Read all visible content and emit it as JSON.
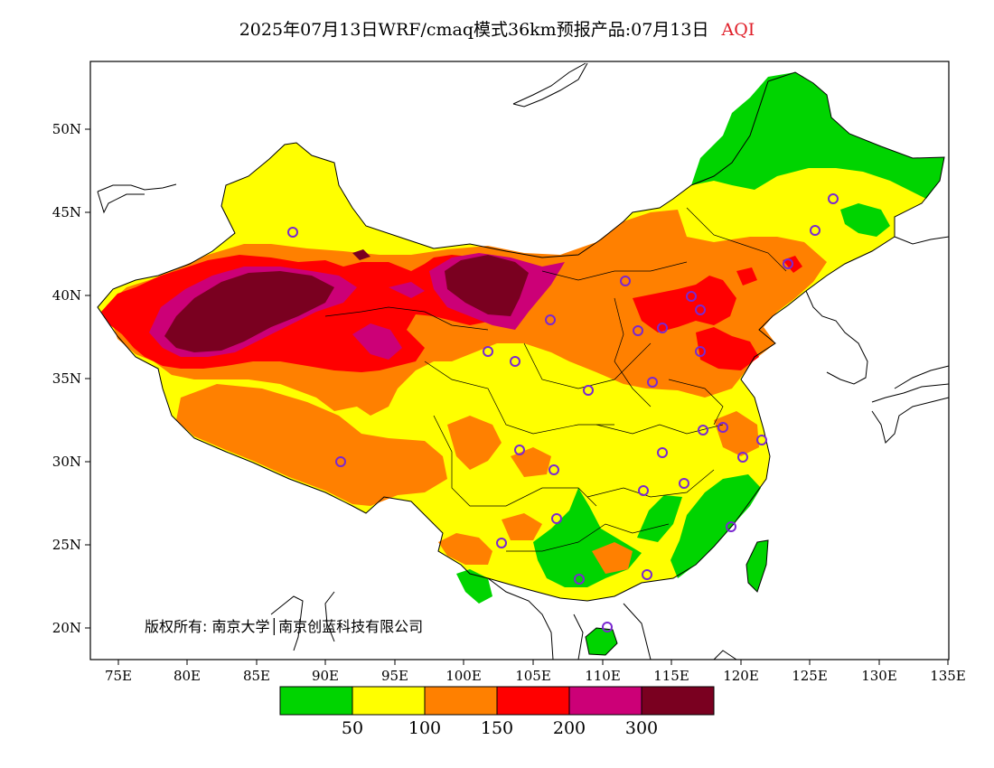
{
  "title": "2025年07月13日WRF/cmaq模式36km预报产品:07月13日",
  "variable": "AQI",
  "copyright": "版权所有: 南京大学│南京创蓝科技有限公司",
  "lat_ticks": [
    "20N",
    "25N",
    "30N",
    "35N",
    "40N",
    "45N",
    "50N"
  ],
  "lon_ticks": [
    "75E",
    "80E",
    "85E",
    "90E",
    "95E",
    "100E",
    "105E",
    "110E",
    "115E",
    "120E",
    "125E",
    "130E",
    "135E"
  ],
  "colorbar": {
    "colors": [
      "#00d400",
      "#ffff00",
      "#ff8000",
      "#ff0000",
      "#cc0077",
      "#7a0020"
    ],
    "labels": [
      "50",
      "100",
      "150",
      "200",
      "300"
    ]
  },
  "legend_colors": {
    "good": "#00d400",
    "moderate": "#ffff00",
    "usg": "#ff8000",
    "unhealthy": "#ff0000",
    "very_unhealthy": "#cc0077",
    "hazardous": "#7a0020"
  }
}
